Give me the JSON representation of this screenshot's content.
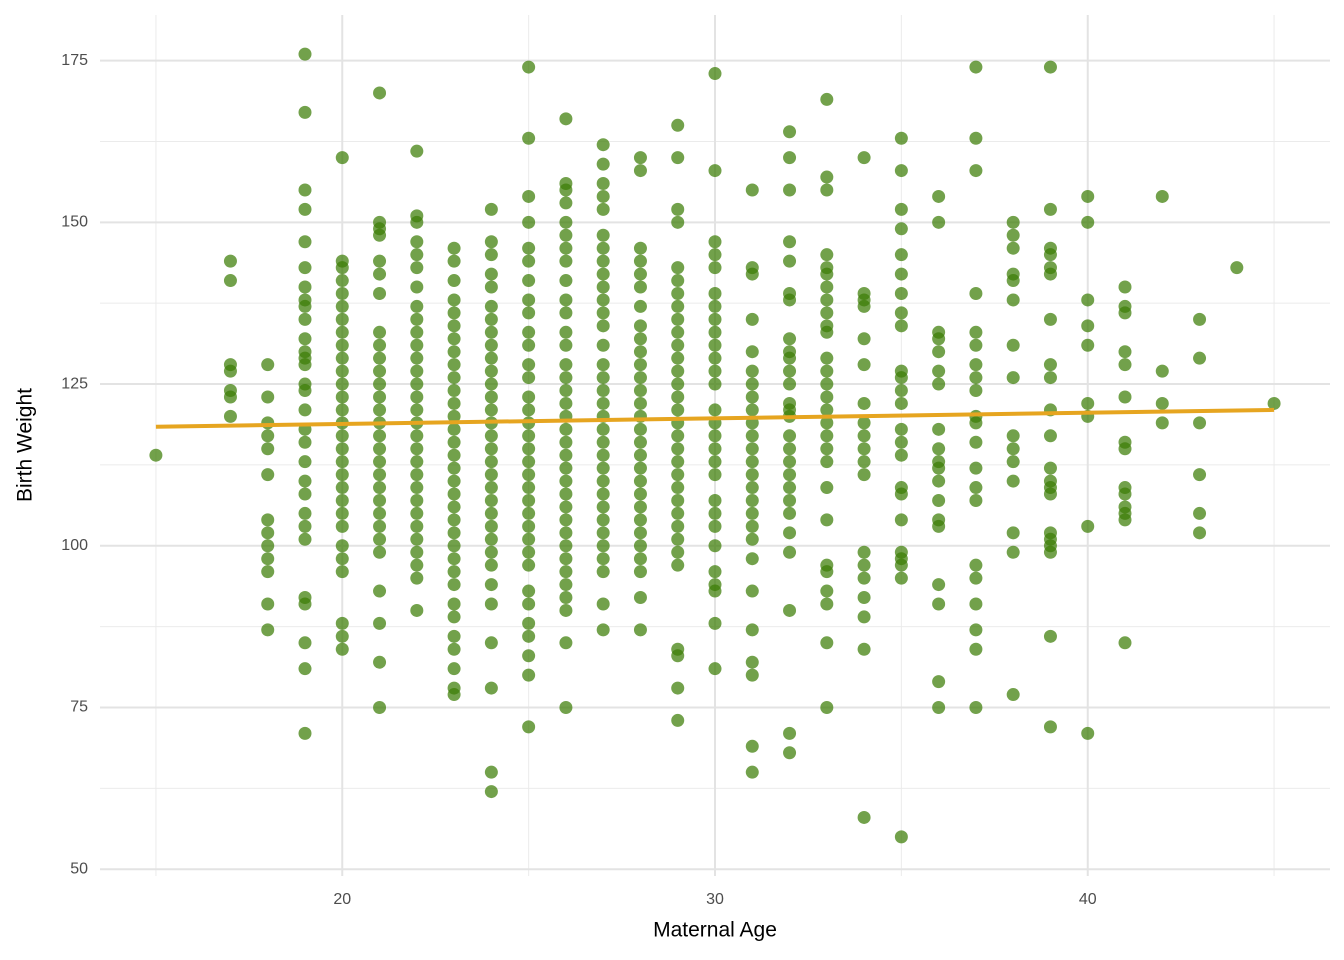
{
  "chart_data": {
    "type": "scatter",
    "x_label": "Maternal Age",
    "y_label": "Birth Weight",
    "xlim": [
      13.5,
      46.5
    ],
    "xticks": [
      20,
      30,
      40
    ],
    "ylim": [
      48.95,
      182.05
    ],
    "yticks": [
      50,
      75,
      100,
      125,
      150,
      175
    ],
    "x_minor_grid": [
      15,
      25,
      35,
      45
    ],
    "y_minor_grid": [
      62.5,
      87.5,
      112.5,
      137.5,
      162.5
    ],
    "grid": true,
    "color": "#3b7d05",
    "trend": {
      "x": [
        15,
        45
      ],
      "values": [
        118.4,
        121.0
      ],
      "color": "#e6a520"
    },
    "groups": [
      {
        "x": 15,
        "values": [
          114
        ]
      },
      {
        "x": 17,
        "values": [
          144,
          141,
          128,
          127,
          124,
          123,
          120
        ]
      },
      {
        "x": 18,
        "values": [
          128,
          123,
          119,
          117,
          115,
          111,
          104,
          102,
          100,
          98,
          96,
          91,
          87
        ]
      },
      {
        "x": 19,
        "values": [
          176,
          167,
          155,
          152,
          147,
          143,
          140,
          138,
          137,
          135,
          132,
          130,
          129,
          128,
          125,
          124,
          121,
          118,
          116,
          113,
          110,
          108,
          105,
          103,
          101,
          92,
          91,
          85,
          81,
          71
        ]
      },
      {
        "x": 20,
        "values": [
          160,
          144,
          143,
          141,
          139,
          137,
          135,
          133,
          131,
          129,
          127,
          125,
          123,
          121,
          119,
          117,
          115,
          113,
          111,
          109,
          107,
          105,
          103,
          100,
          98,
          96,
          88,
          86,
          84
        ]
      },
      {
        "x": 21,
        "values": [
          170,
          150,
          149,
          148,
          144,
          142,
          139,
          133,
          131,
          129,
          127,
          125,
          123,
          121,
          119,
          117,
          115,
          113,
          111,
          109,
          107,
          105,
          103,
          101,
          99,
          93,
          88,
          82,
          75
        ]
      },
      {
        "x": 22,
        "values": [
          161,
          151,
          150,
          147,
          145,
          143,
          140,
          137,
          135,
          133,
          131,
          129,
          127,
          125,
          123,
          121,
          119,
          117,
          115,
          113,
          111,
          109,
          107,
          105,
          103,
          101,
          99,
          97,
          95,
          90
        ]
      },
      {
        "x": 23,
        "values": [
          146,
          144,
          141,
          138,
          136,
          134,
          132,
          130,
          128,
          126,
          124,
          122,
          120,
          118,
          116,
          114,
          112,
          110,
          108,
          106,
          104,
          102,
          100,
          98,
          96,
          94,
          91,
          89,
          86,
          84,
          81,
          78,
          77
        ]
      },
      {
        "x": 24,
        "values": [
          152,
          147,
          145,
          142,
          140,
          137,
          135,
          133,
          131,
          129,
          127,
          125,
          123,
          121,
          119,
          117,
          115,
          113,
          111,
          109,
          107,
          105,
          103,
          101,
          99,
          97,
          94,
          91,
          85,
          78,
          65,
          62
        ]
      },
      {
        "x": 25,
        "values": [
          174,
          163,
          154,
          150,
          146,
          144,
          141,
          138,
          136,
          133,
          131,
          128,
          126,
          123,
          121,
          119,
          117,
          115,
          113,
          111,
          109,
          107,
          105,
          103,
          101,
          99,
          97,
          93,
          91,
          88,
          86,
          83,
          80,
          72
        ]
      },
      {
        "x": 26,
        "values": [
          166,
          156,
          155,
          153,
          150,
          148,
          146,
          144,
          141,
          138,
          136,
          133,
          131,
          128,
          126,
          124,
          122,
          120,
          118,
          116,
          114,
          112,
          110,
          108,
          106,
          104,
          102,
          100,
          98,
          96,
          94,
          92,
          90,
          85,
          75
        ]
      },
      {
        "x": 27,
        "values": [
          162,
          159,
          156,
          154,
          152,
          148,
          146,
          144,
          142,
          140,
          138,
          136,
          134,
          131,
          128,
          126,
          124,
          122,
          120,
          118,
          116,
          114,
          112,
          110,
          108,
          106,
          104,
          102,
          100,
          98,
          96,
          91,
          87
        ]
      },
      {
        "x": 28,
        "values": [
          160,
          158,
          146,
          144,
          142,
          140,
          137,
          134,
          132,
          130,
          128,
          126,
          124,
          122,
          120,
          118,
          116,
          114,
          112,
          110,
          108,
          106,
          104,
          102,
          100,
          98,
          96,
          92,
          87
        ]
      },
      {
        "x": 29,
        "values": [
          165,
          160,
          152,
          150,
          143,
          141,
          139,
          137,
          135,
          133,
          131,
          129,
          127,
          125,
          123,
          121,
          119,
          117,
          115,
          113,
          111,
          109,
          107,
          105,
          103,
          101,
          99,
          97,
          84,
          83,
          78,
          73
        ]
      },
      {
        "x": 30,
        "values": [
          173,
          158,
          147,
          145,
          143,
          139,
          137,
          135,
          133,
          131,
          129,
          127,
          125,
          121,
          119,
          117,
          115,
          113,
          111,
          107,
          105,
          103,
          100,
          96,
          94,
          93,
          88,
          81
        ]
      },
      {
        "x": 31,
        "values": [
          155,
          143,
          142,
          135,
          130,
          127,
          125,
          123,
          121,
          119,
          117,
          115,
          113,
          111,
          109,
          107,
          105,
          103,
          101,
          98,
          93,
          87,
          82,
          80,
          69,
          65
        ]
      },
      {
        "x": 32,
        "values": [
          164,
          160,
          155,
          147,
          144,
          139,
          138,
          132,
          130,
          129,
          127,
          125,
          122,
          121,
          120,
          117,
          115,
          113,
          111,
          109,
          107,
          105,
          102,
          99,
          90,
          71,
          68
        ]
      },
      {
        "x": 33,
        "values": [
          169,
          157,
          155,
          145,
          143,
          142,
          140,
          138,
          136,
          134,
          133,
          129,
          127,
          125,
          123,
          121,
          119,
          117,
          115,
          113,
          109,
          104,
          97,
          96,
          93,
          91,
          85,
          75
        ]
      },
      {
        "x": 34,
        "values": [
          160,
          139,
          138,
          137,
          132,
          128,
          122,
          119,
          117,
          115,
          113,
          111,
          99,
          97,
          95,
          92,
          89,
          84,
          58
        ]
      },
      {
        "x": 35,
        "values": [
          163,
          158,
          152,
          149,
          145,
          142,
          139,
          136,
          134,
          127,
          126,
          124,
          122,
          118,
          116,
          114,
          109,
          108,
          104,
          99,
          98,
          97,
          95,
          55
        ]
      },
      {
        "x": 36,
        "values": [
          154,
          150,
          133,
          132,
          130,
          127,
          125,
          118,
          115,
          113,
          112,
          110,
          107,
          104,
          103,
          94,
          91,
          79,
          75
        ]
      },
      {
        "x": 37,
        "values": [
          174,
          163,
          158,
          139,
          133,
          131,
          128,
          126,
          124,
          120,
          119,
          116,
          112,
          109,
          107,
          97,
          95,
          91,
          87,
          84,
          75
        ]
      },
      {
        "x": 38,
        "values": [
          150,
          148,
          146,
          142,
          141,
          138,
          131,
          126,
          117,
          115,
          113,
          110,
          102,
          99,
          77
        ]
      },
      {
        "x": 39,
        "values": [
          174,
          152,
          146,
          145,
          143,
          142,
          135,
          128,
          126,
          121,
          117,
          112,
          110,
          109,
          108,
          102,
          101,
          100,
          99,
          86,
          72
        ]
      },
      {
        "x": 40,
        "values": [
          154,
          150,
          138,
          134,
          131,
          122,
          120,
          103,
          71
        ]
      },
      {
        "x": 41,
        "values": [
          140,
          137,
          136,
          130,
          128,
          123,
          116,
          115,
          109,
          108,
          106,
          105,
          104,
          85
        ]
      },
      {
        "x": 42,
        "values": [
          154,
          127,
          122,
          119
        ]
      },
      {
        "x": 43,
        "values": [
          135,
          129,
          119,
          111,
          105,
          102
        ]
      },
      {
        "x": 44,
        "values": [
          143
        ]
      },
      {
        "x": 45,
        "values": [
          122
        ]
      }
    ]
  }
}
